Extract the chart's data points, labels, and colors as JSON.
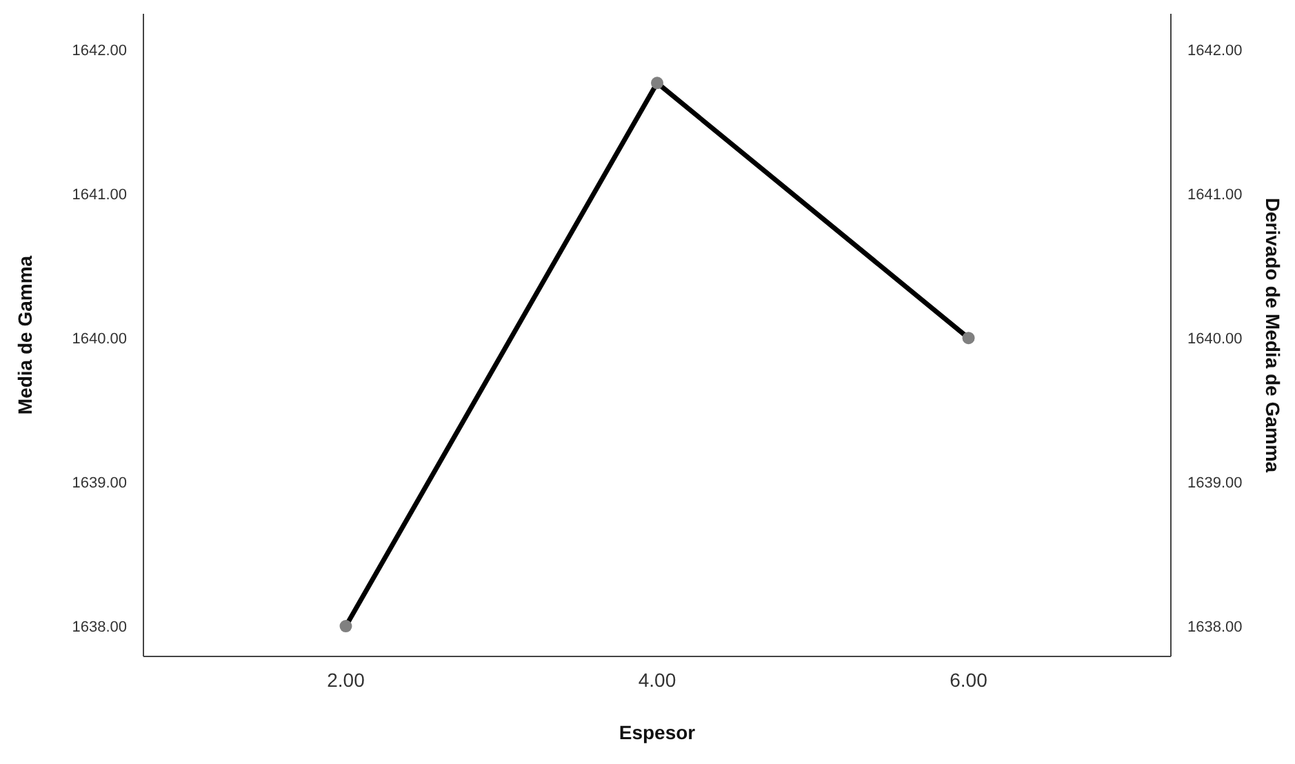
{
  "chart_data": {
    "type": "line",
    "xlabel": "Espesor",
    "ylabel": "Media de Gamma",
    "y2label": "Derivado de Media de Gamma",
    "x": [
      2,
      4,
      6
    ],
    "series": [
      {
        "color": "#000000",
        "values": [
          1638.0,
          1641.77,
          1640.0
        ]
      }
    ],
    "xlim": [
      0.7,
      7.3
    ],
    "xticks": [
      {
        "value": 2,
        "label": "2.00"
      },
      {
        "value": 4,
        "label": "4.00"
      },
      {
        "value": 6,
        "label": "6.00"
      }
    ],
    "ylim": [
      1637.79,
      1642.25
    ],
    "yticks": [
      {
        "value": 1638,
        "label": "1638.00"
      },
      {
        "value": 1639,
        "label": "1639.00"
      },
      {
        "value": 1640,
        "label": "1640.00"
      },
      {
        "value": 1641,
        "label": "1641.00"
      },
      {
        "value": 1642,
        "label": "1642.00"
      }
    ],
    "y2lim": [
      1637.79,
      1642.25
    ],
    "y2ticks": [
      {
        "value": 1638,
        "label": "1638.00"
      },
      {
        "value": 1639,
        "label": "1639.00"
      },
      {
        "value": 1640,
        "label": "1640.00"
      },
      {
        "value": 1641,
        "label": "1641.00"
      },
      {
        "value": 1642,
        "label": "1642.00"
      }
    ],
    "grid": false,
    "legend": false,
    "marker": "circle",
    "line_style": "solid"
  }
}
